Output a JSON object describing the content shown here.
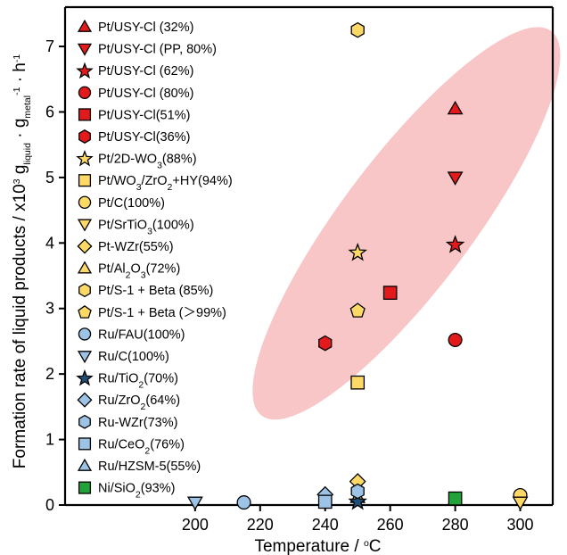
{
  "chart_data": {
    "type": "scatter",
    "xlabel": "Temperature / ",
    "xlabel_sup": "o",
    "xlabel_tail": "C",
    "ylabel_parts": [
      {
        "t": "Formation rate of liquid products / x10",
        "s": "n"
      },
      {
        "t": "3",
        "s": "sup"
      },
      {
        "t": " g",
        "s": "n"
      },
      {
        "t": "liquid",
        "s": "sub"
      },
      {
        "t": " · g",
        "s": "n"
      },
      {
        "t": "metal",
        "s": "sub"
      },
      {
        "t": "-1",
        "s": "sup"
      },
      {
        "t": " · h",
        "s": "n"
      },
      {
        "t": "-1",
        "s": "sup"
      }
    ],
    "xlim": [
      160,
      310
    ],
    "ylim": [
      0,
      7.6
    ],
    "xticks": [
      200,
      220,
      240,
      260,
      280,
      300
    ],
    "yticks": [
      0,
      1,
      2,
      3,
      4,
      5,
      6,
      7
    ],
    "ellipse": {
      "cx": 265,
      "cy": 4.3,
      "rx_deg": 45,
      "ry": 1.05,
      "color": "#f6b3b3"
    },
    "legend_placement": "left",
    "series": [
      {
        "name": [
          {
            "t": "Pt/USY-Cl (32%)"
          }
        ],
        "marker": "triangle-up",
        "color": "#e31a1c",
        "points": [
          [
            280,
            6.05
          ]
        ]
      },
      {
        "name": [
          {
            "t": "Pt/USY-Cl (PP, 80%)"
          }
        ],
        "marker": "triangle-down",
        "color": "#e31a1c",
        "points": [
          [
            280,
            5.0
          ]
        ]
      },
      {
        "name": [
          {
            "t": "Pt/USY-Cl (62%)"
          }
        ],
        "marker": "star",
        "color": "#e31a1c",
        "points": [
          [
            280,
            3.98
          ]
        ]
      },
      {
        "name": [
          {
            "t": "Pt/USY-Cl (80%)"
          }
        ],
        "marker": "circle",
        "color": "#e31a1c",
        "points": [
          [
            280,
            2.52
          ]
        ]
      },
      {
        "name": [
          {
            "t": "Pt/USY-Cl(51%)"
          }
        ],
        "marker": "square",
        "color": "#e31a1c",
        "points": [
          [
            260,
            3.24
          ]
        ]
      },
      {
        "name": [
          {
            "t": "Pt/USY-Cl(36%)"
          }
        ],
        "marker": "hexagon",
        "color": "#e31a1c",
        "points": [
          [
            240,
            2.47
          ]
        ]
      },
      {
        "name": [
          {
            "t": "Pt/2D-WO"
          },
          {
            "t": "3",
            "s": "sub"
          },
          {
            "t": "(88%)"
          }
        ],
        "marker": "star",
        "color": "#ffd966",
        "points": [
          [
            250,
            3.86
          ]
        ]
      },
      {
        "name": [
          {
            "t": "Pt/WO"
          },
          {
            "t": "3",
            "s": "sub"
          },
          {
            "t": "/ZrO"
          },
          {
            "t": "2",
            "s": "sub"
          },
          {
            "t": "+HY(94%)"
          }
        ],
        "marker": "square",
        "color": "#ffd966",
        "points": [
          [
            250,
            1.87
          ]
        ]
      },
      {
        "name": [
          {
            "t": "Pt/C(100%)"
          }
        ],
        "marker": "circle",
        "color": "#ffd966",
        "points": [
          [
            300,
            0.15
          ]
        ]
      },
      {
        "name": [
          {
            "t": "Pt/SrTiO"
          },
          {
            "t": "3",
            "s": "sub"
          },
          {
            "t": "(100%)"
          }
        ],
        "marker": "triangle-down",
        "color": "#ffd966",
        "points": [
          [
            300,
            0.04
          ]
        ]
      },
      {
        "name": [
          {
            "t": "Pt-WZr(55%)"
          }
        ],
        "marker": "diamond",
        "color": "#ffd966",
        "points": [
          [
            250,
            0.36
          ]
        ]
      },
      {
        "name": [
          {
            "t": "Pt/Al"
          },
          {
            "t": "2",
            "s": "sub"
          },
          {
            "t": "O"
          },
          {
            "t": "3",
            "s": "sub"
          },
          {
            "t": "(72%)"
          }
        ],
        "marker": "triangle-up",
        "color": "#ffd966",
        "points": [
          [
            250,
            0.12
          ]
        ]
      },
      {
        "name": [
          {
            "t": "Pt/S-1 + Beta (85%)"
          }
        ],
        "marker": "hexagon",
        "color": "#ffd966",
        "points": [
          [
            250,
            7.25
          ]
        ]
      },
      {
        "name": [
          {
            "t": "Pt/S-1 + Beta (＞99%)"
          }
        ],
        "marker": "pentagon",
        "color": "#ffd966",
        "points": [
          [
            250,
            2.97
          ]
        ]
      },
      {
        "name": [
          {
            "t": "Ru/FAU(100%)"
          }
        ],
        "marker": "circle",
        "color": "#9dc3e6",
        "points": [
          [
            215,
            0.04
          ]
        ]
      },
      {
        "name": [
          {
            "t": "Ru/C(100%)"
          }
        ],
        "marker": "triangle-down",
        "color": "#9dc3e6",
        "points": [
          [
            200,
            0.04
          ]
        ]
      },
      {
        "name": [
          {
            "t": "Ru/TiO"
          },
          {
            "t": "2",
            "s": "sub"
          },
          {
            "t": "(70%)"
          }
        ],
        "marker": "star",
        "color": "#1f4e79",
        "points": [
          [
            250,
            0.06
          ]
        ]
      },
      {
        "name": [
          {
            "t": "Ru/ZrO"
          },
          {
            "t": "2",
            "s": "sub"
          },
          {
            "t": "(64%)"
          }
        ],
        "marker": "diamond",
        "color": "#9dc3e6",
        "points": [
          [
            240,
            0.16
          ]
        ]
      },
      {
        "name": [
          {
            "t": "Ru-WZr(73%)"
          }
        ],
        "marker": "hexagon",
        "color": "#9dc3e6",
        "points": [
          [
            250,
            0.21
          ]
        ]
      },
      {
        "name": [
          {
            "t": "Ru/CeO"
          },
          {
            "t": "2",
            "s": "sub"
          },
          {
            "t": "(76%)"
          }
        ],
        "marker": "square",
        "color": "#9dc3e6",
        "points": [
          [
            240,
            0.05
          ]
        ]
      },
      {
        "name": [
          {
            "t": "Ru/HZSM-5(55%)"
          }
        ],
        "marker": "triangle-up",
        "color": "#9dc3e6",
        "points": [
          [
            280,
            0.08
          ]
        ]
      },
      {
        "name": [
          {
            "t": "Ni/SiO"
          },
          {
            "t": "2",
            "s": "sub"
          },
          {
            "t": "(93%)"
          }
        ],
        "marker": "square",
        "color": "#22a33a",
        "points": [
          [
            280,
            0.1
          ]
        ]
      }
    ]
  }
}
